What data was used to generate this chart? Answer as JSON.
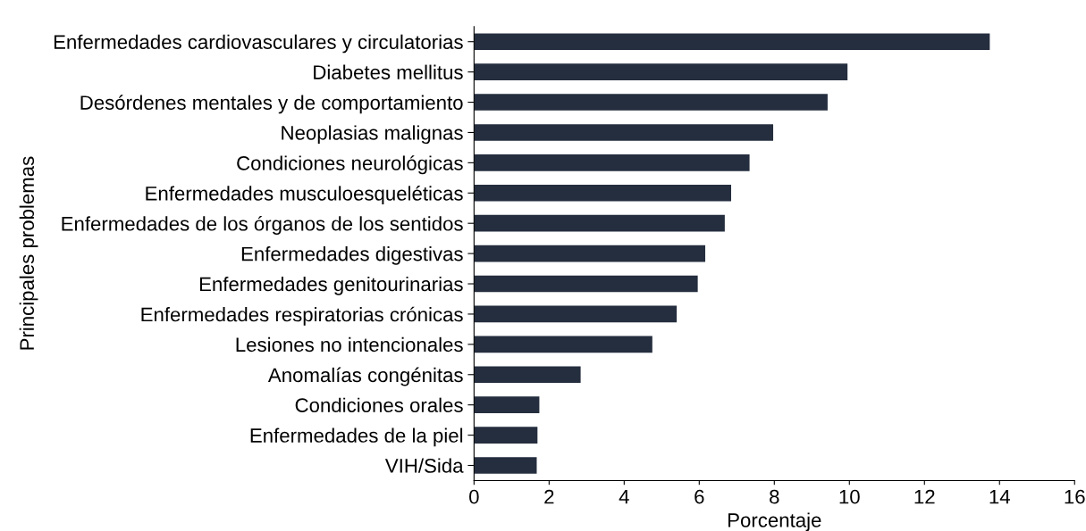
{
  "chart_data": {
    "type": "bar",
    "orientation": "horizontal",
    "xlabel": "Porcentaje",
    "ylabel": "Principales problemas",
    "categories": [
      "Enfermedades cardiovasculares y circulatorias",
      "Diabetes mellitus",
      "Desórdenes mentales y de comportamiento",
      "Neoplasias malignas",
      "Condiciones neurológicas",
      "Enfermedades musculoesqueléticas",
      "Enfermedades de los órganos de los sentidos",
      "Enfermedades digestivas",
      "Enfermedades genitourinarias",
      "Enfermedades respiratorias crónicas",
      "Lesiones no intencionales",
      "Anomalías congénitas",
      "Condiciones orales",
      "Enfermedades de la piel",
      "VIH/Sida"
    ],
    "values": [
      13.74,
      9.95,
      9.42,
      7.97,
      7.34,
      6.85,
      6.68,
      6.16,
      5.96,
      5.4,
      4.75,
      2.84,
      1.74,
      1.69,
      1.67
    ],
    "color": "#252e3e",
    "xlim": [
      0,
      16
    ],
    "xticks": [
      0,
      2,
      4,
      6,
      8,
      10,
      12,
      14,
      16
    ],
    "grid": false
  }
}
